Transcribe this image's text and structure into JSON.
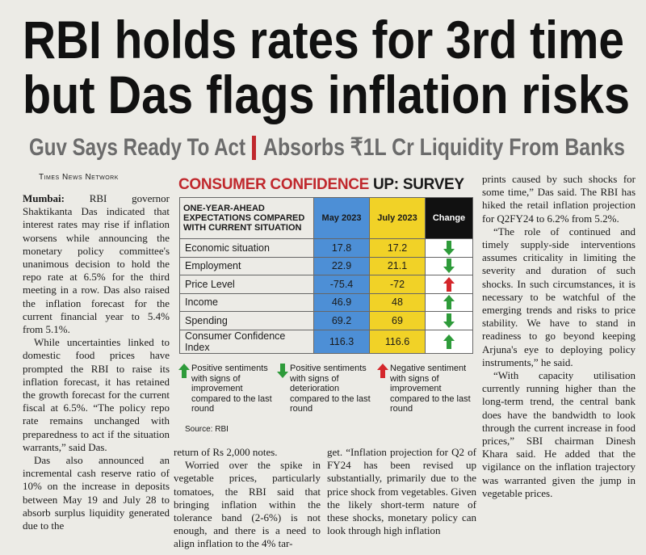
{
  "headline": {
    "lines": [
      "RBI holds rates for 3rd time",
      "but Das flags inflation risks"
    ]
  },
  "subhead": {
    "left": "Guv Says Ready To Act",
    "right": "Absorbs ₹1L Cr Liquidity From Banks"
  },
  "byline": "Times News Network",
  "article": {
    "dateline": "Mumbai:",
    "columns": [
      {
        "paragraphs": [
          "RBI governor Shaktikanta Das indicated that interest rates may rise if inflation worsens while announcing the monetary policy committee's unanimous decision to hold the repo rate at 6.5% for the third meeting in a row. Das also raised the inflation forecast for the current financial year to 5.4% from 5.1%.",
          "While uncertainties linked to domestic food prices have prompted the RBI to raise its inflation forecast, it has retained the growth forecast for the current fiscal at 6.5%. “The policy repo rate remains unchanged with preparedness to act if the situation warrants,” said Das.",
          "Das also announced an incremental cash reserve ratio of 10% on the increase in deposits between May 19 and July 28 to absorb surplus liquidity generated due to the"
        ]
      },
      {
        "paragraphs": [
          "return of Rs 2,000 notes.",
          "Worried over the spike in vegetable prices, particularly tomatoes, the RBI said that bringing inflation within the tolerance band (2-6%) is not enough, and there is a need to align inflation to the 4% tar-"
        ]
      },
      {
        "paragraphs": [
          "get. “Inflation projection for Q2 of FY24 has been revised up substantially, primarily due to the price shock from vegetables. Given the likely short-term nature of these shocks, monetary policy can look through high inflation"
        ]
      },
      {
        "paragraphs": [
          "prints caused by such shocks for some time,” Das said. The RBI has hiked the retail inflation projection for Q2FY24 to 6.2% from 5.2%.",
          "“The role of continued and timely supply-side interventions assumes criticality in limiting the severity and duration of such shocks. In such circumstances, it is necessary to be watchful of the emerging trends and risks to price stability. We have to stand in readiness to go beyond keeping Arjuna's eye to deploying policy instruments,” he said.",
          "“With capacity utilisation currently running higher than the long-term trend, the central bank does have the bandwidth to look through the current increase in food prices,” SBI chairman Dinesh Khara said. He added that the vigilance on the inflation trajectory was warranted given the jump in vegetable prices."
        ]
      }
    ]
  },
  "table": {
    "title_red": "CONSUMER CONFIDENCE",
    "title_black": "UP: SURVEY",
    "header": [
      "ONE-YEAR-AHEAD EXPECTATIONS COMPARED WITH CURRENT SITUATION",
      "May 2023",
      "July 2023",
      "Change"
    ],
    "rows": [
      [
        "Economic situation",
        17.8,
        17.2
      ],
      [
        "Employment",
        22.9,
        21.1
      ],
      [
        "Price Level",
        -75.4,
        -72
      ],
      [
        "Income",
        46.9,
        48
      ],
      [
        "Spending",
        69.2,
        69
      ],
      [
        "Consumer Confidence Index",
        116.3,
        116.6
      ]
    ],
    "legend": [
      "Positive sentiments with signs of improvement compared to the last round",
      "Positive sentiments with signs of deterioration compared to the last round",
      "Negative sentiment with signs of improvement compared to the last round"
    ],
    "source": "Source: RBI"
  }
}
